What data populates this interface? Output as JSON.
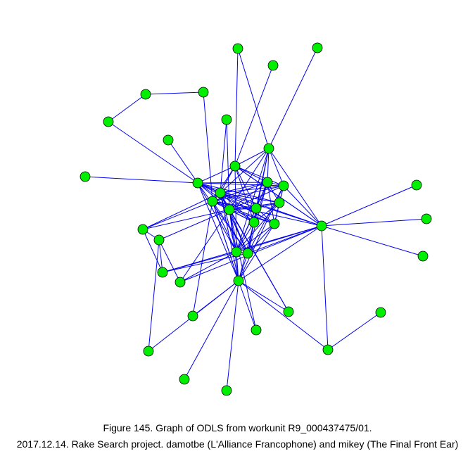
{
  "caption": {
    "line1": "Figure 145. Graph of ODLS from workunit R9_000437475/01.",
    "line2": "2017.12.14. Rake Search project. damotbe (L'Alliance Francophone) and mikey (The Final Front Ear)"
  },
  "style": {
    "node_color": "#00ee00",
    "node_stroke": "#000000",
    "edge_color": "#0000ee"
  },
  "graph": {
    "node_count": 42
  }
}
